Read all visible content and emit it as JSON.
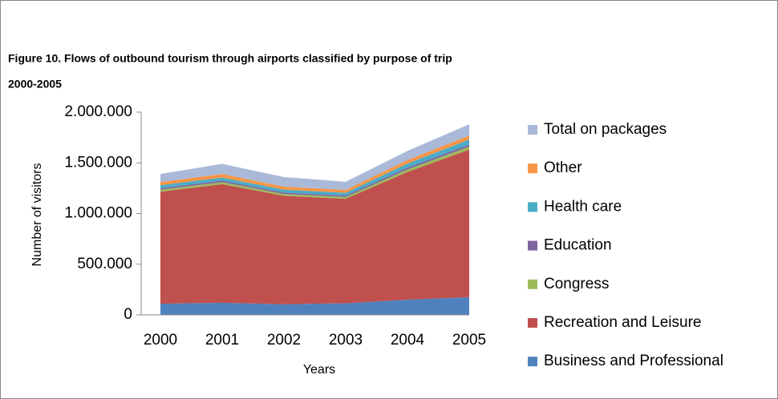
{
  "chart_data": {
    "type": "area",
    "title": "Figure 10. Flows of outbound tourism through airports classified by purpose of trip",
    "subtitle": "2000-2005",
    "x_label": "Years",
    "y_label": "Number of visitors",
    "categories": [
      "2000",
      "2001",
      "2002",
      "2003",
      "2004",
      "2005"
    ],
    "series": [
      {
        "name": "Business and Professional",
        "color": "#4f81bd",
        "values": [
          110000,
          120000,
          105000,
          115000,
          150000,
          175000
        ]
      },
      {
        "name": "Recreation and Leisure",
        "color": "#c0504d",
        "values": [
          1105000,
          1170000,
          1070000,
          1030000,
          1260000,
          1455000
        ]
      },
      {
        "name": "Congress",
        "color": "#9bbb59",
        "values": [
          20000,
          20000,
          18000,
          18000,
          25000,
          30000
        ]
      },
      {
        "name": "Education",
        "color": "#8064a2",
        "values": [
          15000,
          15000,
          14000,
          14000,
          18000,
          20000
        ]
      },
      {
        "name": "Health care",
        "color": "#4bacc6",
        "values": [
          30000,
          30000,
          28000,
          28000,
          40000,
          50000
        ]
      },
      {
        "name": "Other",
        "color": "#f79646",
        "values": [
          30000,
          35000,
          30000,
          28000,
          35000,
          40000
        ]
      },
      {
        "name": "Total on packages",
        "color": "#aab9d8",
        "values": [
          80000,
          100000,
          95000,
          80000,
          90000,
          110000
        ]
      }
    ],
    "ylim": [
      0,
      2000000
    ],
    "yticks": [
      0,
      {
        "value": 500000,
        "label": "500.000"
      },
      {
        "value": 1000000,
        "label": "1.000.000"
      },
      {
        "value": 1500000,
        "label": "1.500.000"
      },
      {
        "value": 2000000,
        "label": "2.000.000"
      }
    ],
    "stacked": true,
    "legend": "right"
  }
}
